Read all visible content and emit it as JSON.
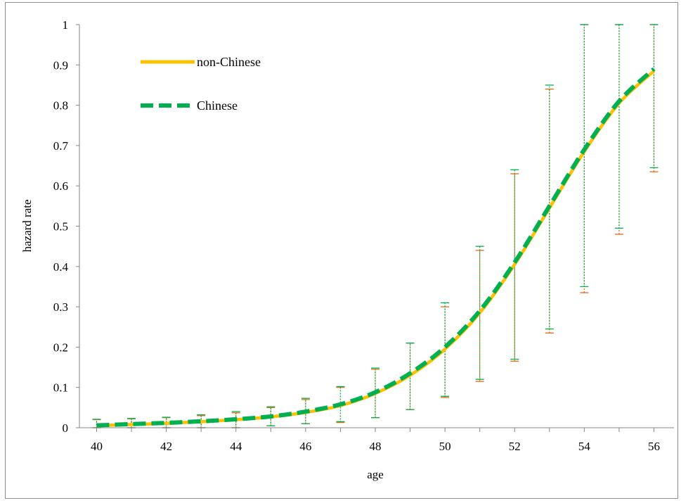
{
  "chart_data": {
    "type": "line",
    "title": "",
    "xlabel": "age",
    "ylabel": "hazard rate",
    "xlim": [
      40,
      56
    ],
    "ylim": [
      0,
      1
    ],
    "x_ticks": [
      "40",
      "42",
      "44",
      "46",
      "48",
      "50",
      "52",
      "54",
      "56"
    ],
    "y_ticks": [
      "0",
      "0.1",
      "0.2",
      "0.3",
      "0.4",
      "0.5",
      "0.6",
      "0.7",
      "0.8",
      "0.9",
      "1"
    ],
    "grid": false,
    "legend": "top-left",
    "x": [
      40,
      41,
      42,
      43,
      44,
      45,
      46,
      47,
      48,
      49,
      50,
      51,
      52,
      53,
      54,
      55,
      56
    ],
    "series": [
      {
        "name": "non-Chinese",
        "color": "#FFC000",
        "style": "solid",
        "values": [
          0.005,
          0.008,
          0.011,
          0.015,
          0.02,
          0.027,
          0.038,
          0.055,
          0.085,
          0.13,
          0.195,
          0.285,
          0.405,
          0.545,
          0.685,
          0.805,
          0.885
        ],
        "lower": [
          0.0,
          0.0,
          0.0,
          0.0,
          0.0,
          0.005,
          0.01,
          0.013,
          0.025,
          0.045,
          0.075,
          0.115,
          0.165,
          0.235,
          0.335,
          0.48,
          0.635
        ],
        "upper": [
          0.02,
          0.022,
          0.025,
          0.03,
          0.037,
          0.05,
          0.07,
          0.1,
          0.145,
          0.21,
          0.3,
          0.44,
          0.63,
          0.84,
          1.0,
          1.0,
          1.0
        ]
      },
      {
        "name": "Chinese",
        "color": "#00B050",
        "style": "dashed",
        "values": [
          0.006,
          0.009,
          0.012,
          0.016,
          0.021,
          0.028,
          0.04,
          0.058,
          0.088,
          0.135,
          0.2,
          0.29,
          0.41,
          0.55,
          0.69,
          0.81,
          0.89
        ],
        "lower": [
          0.0,
          0.0,
          0.0,
          0.0,
          0.0,
          0.005,
          0.01,
          0.015,
          0.025,
          0.045,
          0.078,
          0.12,
          0.17,
          0.245,
          0.35,
          0.495,
          0.645
        ],
        "upper": [
          0.021,
          0.023,
          0.026,
          0.032,
          0.04,
          0.052,
          0.073,
          0.102,
          0.148,
          0.21,
          0.31,
          0.45,
          0.64,
          0.85,
          1.0,
          1.0,
          1.0
        ]
      }
    ]
  }
}
